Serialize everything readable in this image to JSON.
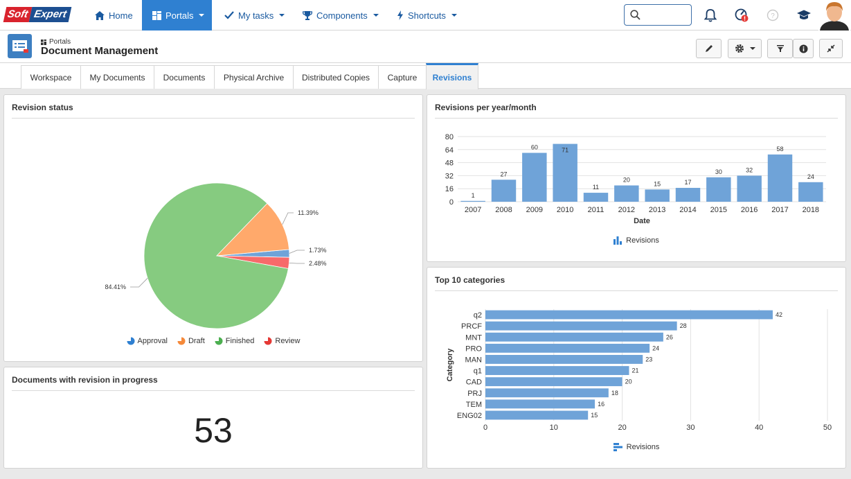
{
  "brand": {
    "logo_left": "Soft",
    "logo_right": "Expert"
  },
  "nav": {
    "home": "Home",
    "portals": "Portals",
    "tasks": "My tasks",
    "components": "Components",
    "shortcuts": "Shortcuts",
    "search_value": "",
    "search_placeholder": ""
  },
  "header": {
    "breadcrumb": "Portals",
    "title": "Document Management"
  },
  "tabs": [
    {
      "label": "Workspace"
    },
    {
      "label": "My Documents"
    },
    {
      "label": "Documents"
    },
    {
      "label": "Physical Archive"
    },
    {
      "label": "Distributed Copies"
    },
    {
      "label": "Capture"
    },
    {
      "label": "Revisions"
    }
  ],
  "colors": {
    "accent": "#2f80d1",
    "bar": "#6fa3d8",
    "approval": "#6fa3d8",
    "draft": "#ffa96b",
    "finished": "#86cb80",
    "review": "#f76a6a"
  },
  "panels": {
    "revision_status": "Revision status",
    "per_year": "Revisions per year/month",
    "in_progress": "Documents with revision in progress",
    "top_categories": "Top 10 categories"
  },
  "in_progress_count": "53",
  "chart_data": [
    {
      "type": "pie",
      "title": "Revision status",
      "slices": [
        {
          "label": "Approval",
          "value": 1.73,
          "label_text": "1.73%"
        },
        {
          "label": "Draft",
          "value": 11.39,
          "label_text": "11.39%"
        },
        {
          "label": "Finished",
          "value": 84.41,
          "label_text": "84.41%"
        },
        {
          "label": "Review",
          "value": 2.48,
          "label_text": "2.48%"
        }
      ],
      "legend": "bottom"
    },
    {
      "type": "bar",
      "title": "Revisions per year/month",
      "categories": [
        "2007",
        "2008",
        "2009",
        "2010",
        "2011",
        "2012",
        "2013",
        "2014",
        "2015",
        "2016",
        "2017",
        "2018"
      ],
      "series": [
        {
          "name": "Revisions",
          "values": [
            1,
            27,
            60,
            71,
            11,
            20,
            15,
            17,
            30,
            32,
            58,
            24
          ]
        }
      ],
      "xlabel": "Date",
      "ylabel": "",
      "ylim": [
        0,
        80
      ],
      "yticks": [
        "0",
        "16",
        "32",
        "48",
        "64",
        "80"
      ],
      "grid": true,
      "legend": "bottom"
    },
    {
      "type": "bar",
      "orientation": "horizontal",
      "title": "Top 10 categories",
      "categories": [
        "q2",
        "PRCF",
        "MNT",
        "PRO",
        "MAN",
        "q1",
        "CAD",
        "PRJ",
        "TEM",
        "ENG02"
      ],
      "series": [
        {
          "name": "Revisions",
          "values": [
            42,
            28,
            26,
            24,
            23,
            21,
            20,
            18,
            16,
            15
          ]
        }
      ],
      "xlabel": "",
      "ylabel": "Category",
      "xlim": [
        0,
        50
      ],
      "xticks": [
        "0",
        "10",
        "20",
        "30",
        "40",
        "50"
      ],
      "grid": true,
      "legend": "bottom"
    }
  ]
}
